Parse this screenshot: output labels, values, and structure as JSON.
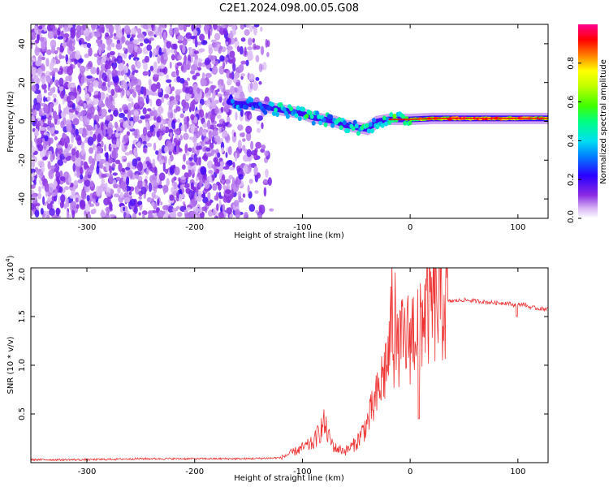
{
  "title": "C2E1.2024.098.00.05.G08",
  "chart_data": [
    {
      "type": "heatmap",
      "xlabel": "Height of straight line (km)",
      "ylabel": "Frequency (Hz)",
      "xlim": [
        -352,
        128
      ],
      "ylim": [
        -50,
        50
      ],
      "xticks": [
        -300,
        -200,
        -100,
        0,
        100
      ],
      "yticks": [
        -40,
        -20,
        0,
        20,
        40
      ],
      "noise_region": {
        "x_range": [
          -352,
          -125
        ],
        "y_range": [
          -50,
          50
        ]
      },
      "signal_track": {
        "x": [
          -168,
          -160,
          -150,
          -140,
          -130,
          -120,
          -110,
          -100,
          -90,
          -80,
          -70,
          -60,
          -50,
          -40,
          -30,
          -20,
          -10,
          0,
          20,
          40,
          60,
          80,
          100,
          120,
          128
        ],
        "y": [
          10,
          9,
          9,
          8,
          7,
          6,
          5,
          4,
          2,
          1,
          0,
          -2,
          -3,
          -4,
          0,
          1,
          1,
          1,
          1.5,
          1.5,
          1.5,
          1.5,
          1.5,
          1.5,
          1.5
        ],
        "amp": [
          0.3,
          0.35,
          0.35,
          0.35,
          0.4,
          0.5,
          0.5,
          0.55,
          0.5,
          0.45,
          0.45,
          0.45,
          0.45,
          0.5,
          0.5,
          0.55,
          0.6,
          0.7,
          0.85,
          0.95,
          0.95,
          0.95,
          0.9,
          0.85,
          0.85
        ]
      },
      "colorbar": {
        "label": "Normalized spectral amplitude",
        "range": [
          0,
          1
        ],
        "ticks": [
          "0.0",
          "0.2",
          "0.4",
          "0.6",
          "0.8"
        ],
        "colormap": "white-violet-blue-cyan-green-yellow-orange-red-magenta"
      }
    },
    {
      "type": "line",
      "xlabel": "Height of straight line (km)",
      "ylabel": "SNR (10 * v/v)",
      "yscale_label": "(x10",
      "yscale_exp": "4",
      "yscale_close": ")",
      "xlim": [
        -352,
        128
      ],
      "ylim": [
        0,
        2.0
      ],
      "xticks": [
        -300,
        -200,
        -100,
        0,
        100
      ],
      "yticks": [
        "0.5",
        "1.0",
        "1.5",
        "2.0"
      ],
      "color": "#ee3333",
      "series": [
        {
          "x": [
            -352,
            -300,
            -250,
            -200,
            -150,
            -120,
            -110,
            -100,
            -90,
            -85,
            -80,
            -75,
            -70,
            -60,
            -50,
            -40,
            -35,
            -30,
            -25,
            -20,
            -17,
            -15,
            -12,
            -10,
            -5,
            0,
            5,
            10,
            15,
            20,
            25,
            30,
            40,
            50,
            60,
            70,
            80,
            90,
            95,
            100,
            105,
            110,
            120,
            128
          ],
          "y": [
            0.03,
            0.03,
            0.04,
            0.04,
            0.04,
            0.05,
            0.1,
            0.15,
            0.2,
            0.3,
            0.4,
            0.25,
            0.15,
            0.12,
            0.2,
            0.4,
            0.55,
            0.7,
            0.9,
            1.1,
            1.4,
            1.2,
            1.1,
            1.2,
            1.25,
            1.3,
            1.4,
            1.5,
            1.58,
            1.6,
            1.62,
            1.65,
            1.66,
            1.67,
            1.66,
            1.65,
            1.64,
            1.64,
            1.62,
            1.62,
            1.63,
            1.6,
            1.58,
            1.58
          ]
        }
      ]
    }
  ]
}
